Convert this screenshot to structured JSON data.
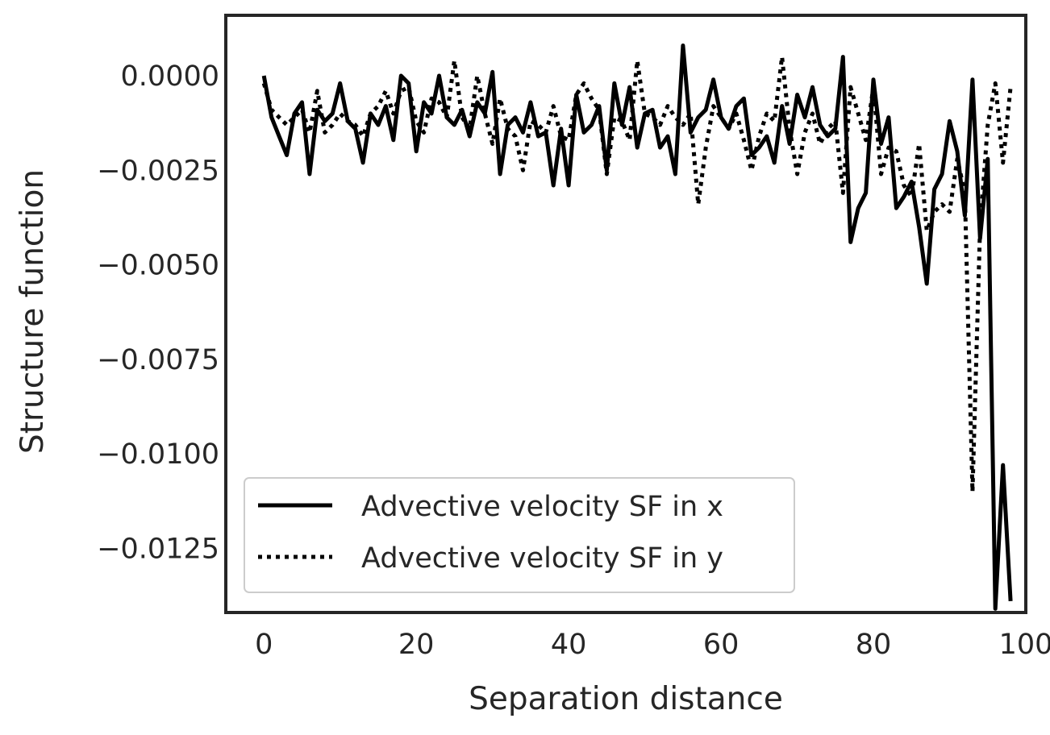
{
  "chart_data": {
    "type": "line",
    "xlabel": "Separation distance",
    "ylabel": "Structure function",
    "xlim": [
      -5,
      100
    ],
    "ylim": [
      -0.0142,
      0.0016
    ],
    "xticks": [
      0,
      20,
      40,
      60,
      80,
      100
    ],
    "xtick_labels": [
      "0",
      "20",
      "40",
      "60",
      "80",
      "100"
    ],
    "yticks": [
      0.0,
      -0.0025,
      -0.005,
      -0.0075,
      -0.01,
      -0.0125
    ],
    "ytick_labels": [
      "0.0000",
      "−0.0025",
      "−0.0050",
      "−0.0075",
      "−0.0100",
      "−0.0125"
    ],
    "grid": false,
    "legend_position": "lower-left",
    "x": [
      0,
      1,
      2,
      3,
      4,
      5,
      6,
      7,
      8,
      9,
      10,
      11,
      12,
      13,
      14,
      15,
      16,
      17,
      18,
      19,
      20,
      21,
      22,
      23,
      24,
      25,
      26,
      27,
      28,
      29,
      30,
      31,
      32,
      33,
      34,
      35,
      36,
      37,
      38,
      39,
      40,
      41,
      42,
      43,
      44,
      45,
      46,
      47,
      48,
      49,
      50,
      51,
      52,
      53,
      54,
      55,
      56,
      57,
      58,
      59,
      60,
      61,
      62,
      63,
      64,
      65,
      66,
      67,
      68,
      69,
      70,
      71,
      72,
      73,
      74,
      75,
      76,
      77,
      78,
      79,
      80,
      81,
      82,
      83,
      84,
      85,
      86,
      87,
      88,
      89,
      90,
      91,
      92,
      93,
      94,
      95,
      96,
      97,
      98
    ],
    "series": [
      {
        "name": "Advective velocity SF in x",
        "style": "solid",
        "color": "#000000",
        "values": [
          0.0,
          -0.0011,
          -0.0016,
          -0.0021,
          -0.001,
          -0.0007,
          -0.0026,
          -0.0009,
          -0.0012,
          -0.001,
          -0.0002,
          -0.0012,
          -0.0014,
          -0.0023,
          -0.001,
          -0.0013,
          -0.0008,
          -0.0017,
          0.0,
          -0.0002,
          -0.002,
          -0.0007,
          -0.001,
          0.0,
          -0.0011,
          -0.0013,
          -0.0009,
          -0.0016,
          -0.0007,
          -0.001,
          0.0001,
          -0.0026,
          -0.0013,
          -0.0011,
          -0.0015,
          -0.0007,
          -0.0016,
          -0.0015,
          -0.0029,
          -0.0014,
          -0.0029,
          -0.0005,
          -0.0015,
          -0.0013,
          -0.0008,
          -0.0025,
          -0.0002,
          -0.0013,
          -0.0003,
          -0.0019,
          -0.001,
          -0.0009,
          -0.0019,
          -0.0016,
          -0.0026,
          0.0008,
          -0.0015,
          -0.0011,
          -0.0009,
          -0.0001,
          -0.0011,
          -0.0014,
          -0.0008,
          -0.0006,
          -0.0021,
          -0.0019,
          -0.0016,
          -0.0023,
          -0.0008,
          -0.0018,
          -0.0005,
          -0.0011,
          -0.0003,
          -0.0013,
          -0.0016,
          -0.0014,
          0.0005,
          -0.0044,
          -0.0035,
          -0.0031,
          -0.0001,
          -0.0018,
          -0.0011,
          -0.0035,
          -0.0032,
          -0.0028,
          -0.004,
          -0.0055,
          -0.003,
          -0.0026,
          -0.0012,
          -0.002,
          -0.0037,
          -0.0001,
          -0.0043,
          -0.0022,
          -0.0141,
          -0.0103,
          -0.0139
        ]
      },
      {
        "name": "Advective velocity SF in y",
        "style": "dotted",
        "color": "#000000",
        "values": [
          -0.0002,
          -0.0009,
          -0.0011,
          -0.0013,
          -0.0011,
          -0.0009,
          -0.0015,
          -0.0004,
          -0.0015,
          -0.0013,
          -0.001,
          -0.0012,
          -0.0013,
          -0.0016,
          -0.001,
          -0.0008,
          -0.0004,
          -0.001,
          -0.0004,
          -0.0003,
          -0.0012,
          -0.0015,
          -0.0006,
          -0.0007,
          -0.0011,
          0.0004,
          -0.0011,
          -0.0014,
          0.0,
          -0.001,
          -0.0018,
          -0.0006,
          -0.0014,
          -0.0016,
          -0.0025,
          -0.0012,
          -0.0013,
          -0.0015,
          -0.0008,
          -0.0016,
          -0.0017,
          -0.0005,
          -0.0002,
          -0.0006,
          -0.0009,
          -0.0026,
          -0.0011,
          -0.0012,
          -0.0017,
          0.0004,
          -0.001,
          -0.0011,
          -0.0013,
          -0.0008,
          -0.0011,
          -0.0013,
          -0.001,
          -0.0034,
          -0.0019,
          -0.0008,
          -0.0011,
          -0.0014,
          -0.001,
          -0.0017,
          -0.0025,
          -0.0016,
          -0.001,
          -0.0012,
          0.0005,
          -0.0014,
          -0.0026,
          -0.0015,
          -0.001,
          -0.0018,
          -0.0014,
          -0.0012,
          -0.0031,
          -0.0003,
          -0.001,
          -0.0017,
          -0.0003,
          -0.0026,
          -0.0019,
          -0.002,
          -0.0029,
          -0.0032,
          -0.0018,
          -0.0041,
          -0.0036,
          -0.0034,
          -0.0036,
          -0.0022,
          -0.0031,
          -0.011,
          -0.004,
          -0.0013,
          -0.0002,
          -0.0023,
          -0.0003
        ]
      }
    ]
  }
}
